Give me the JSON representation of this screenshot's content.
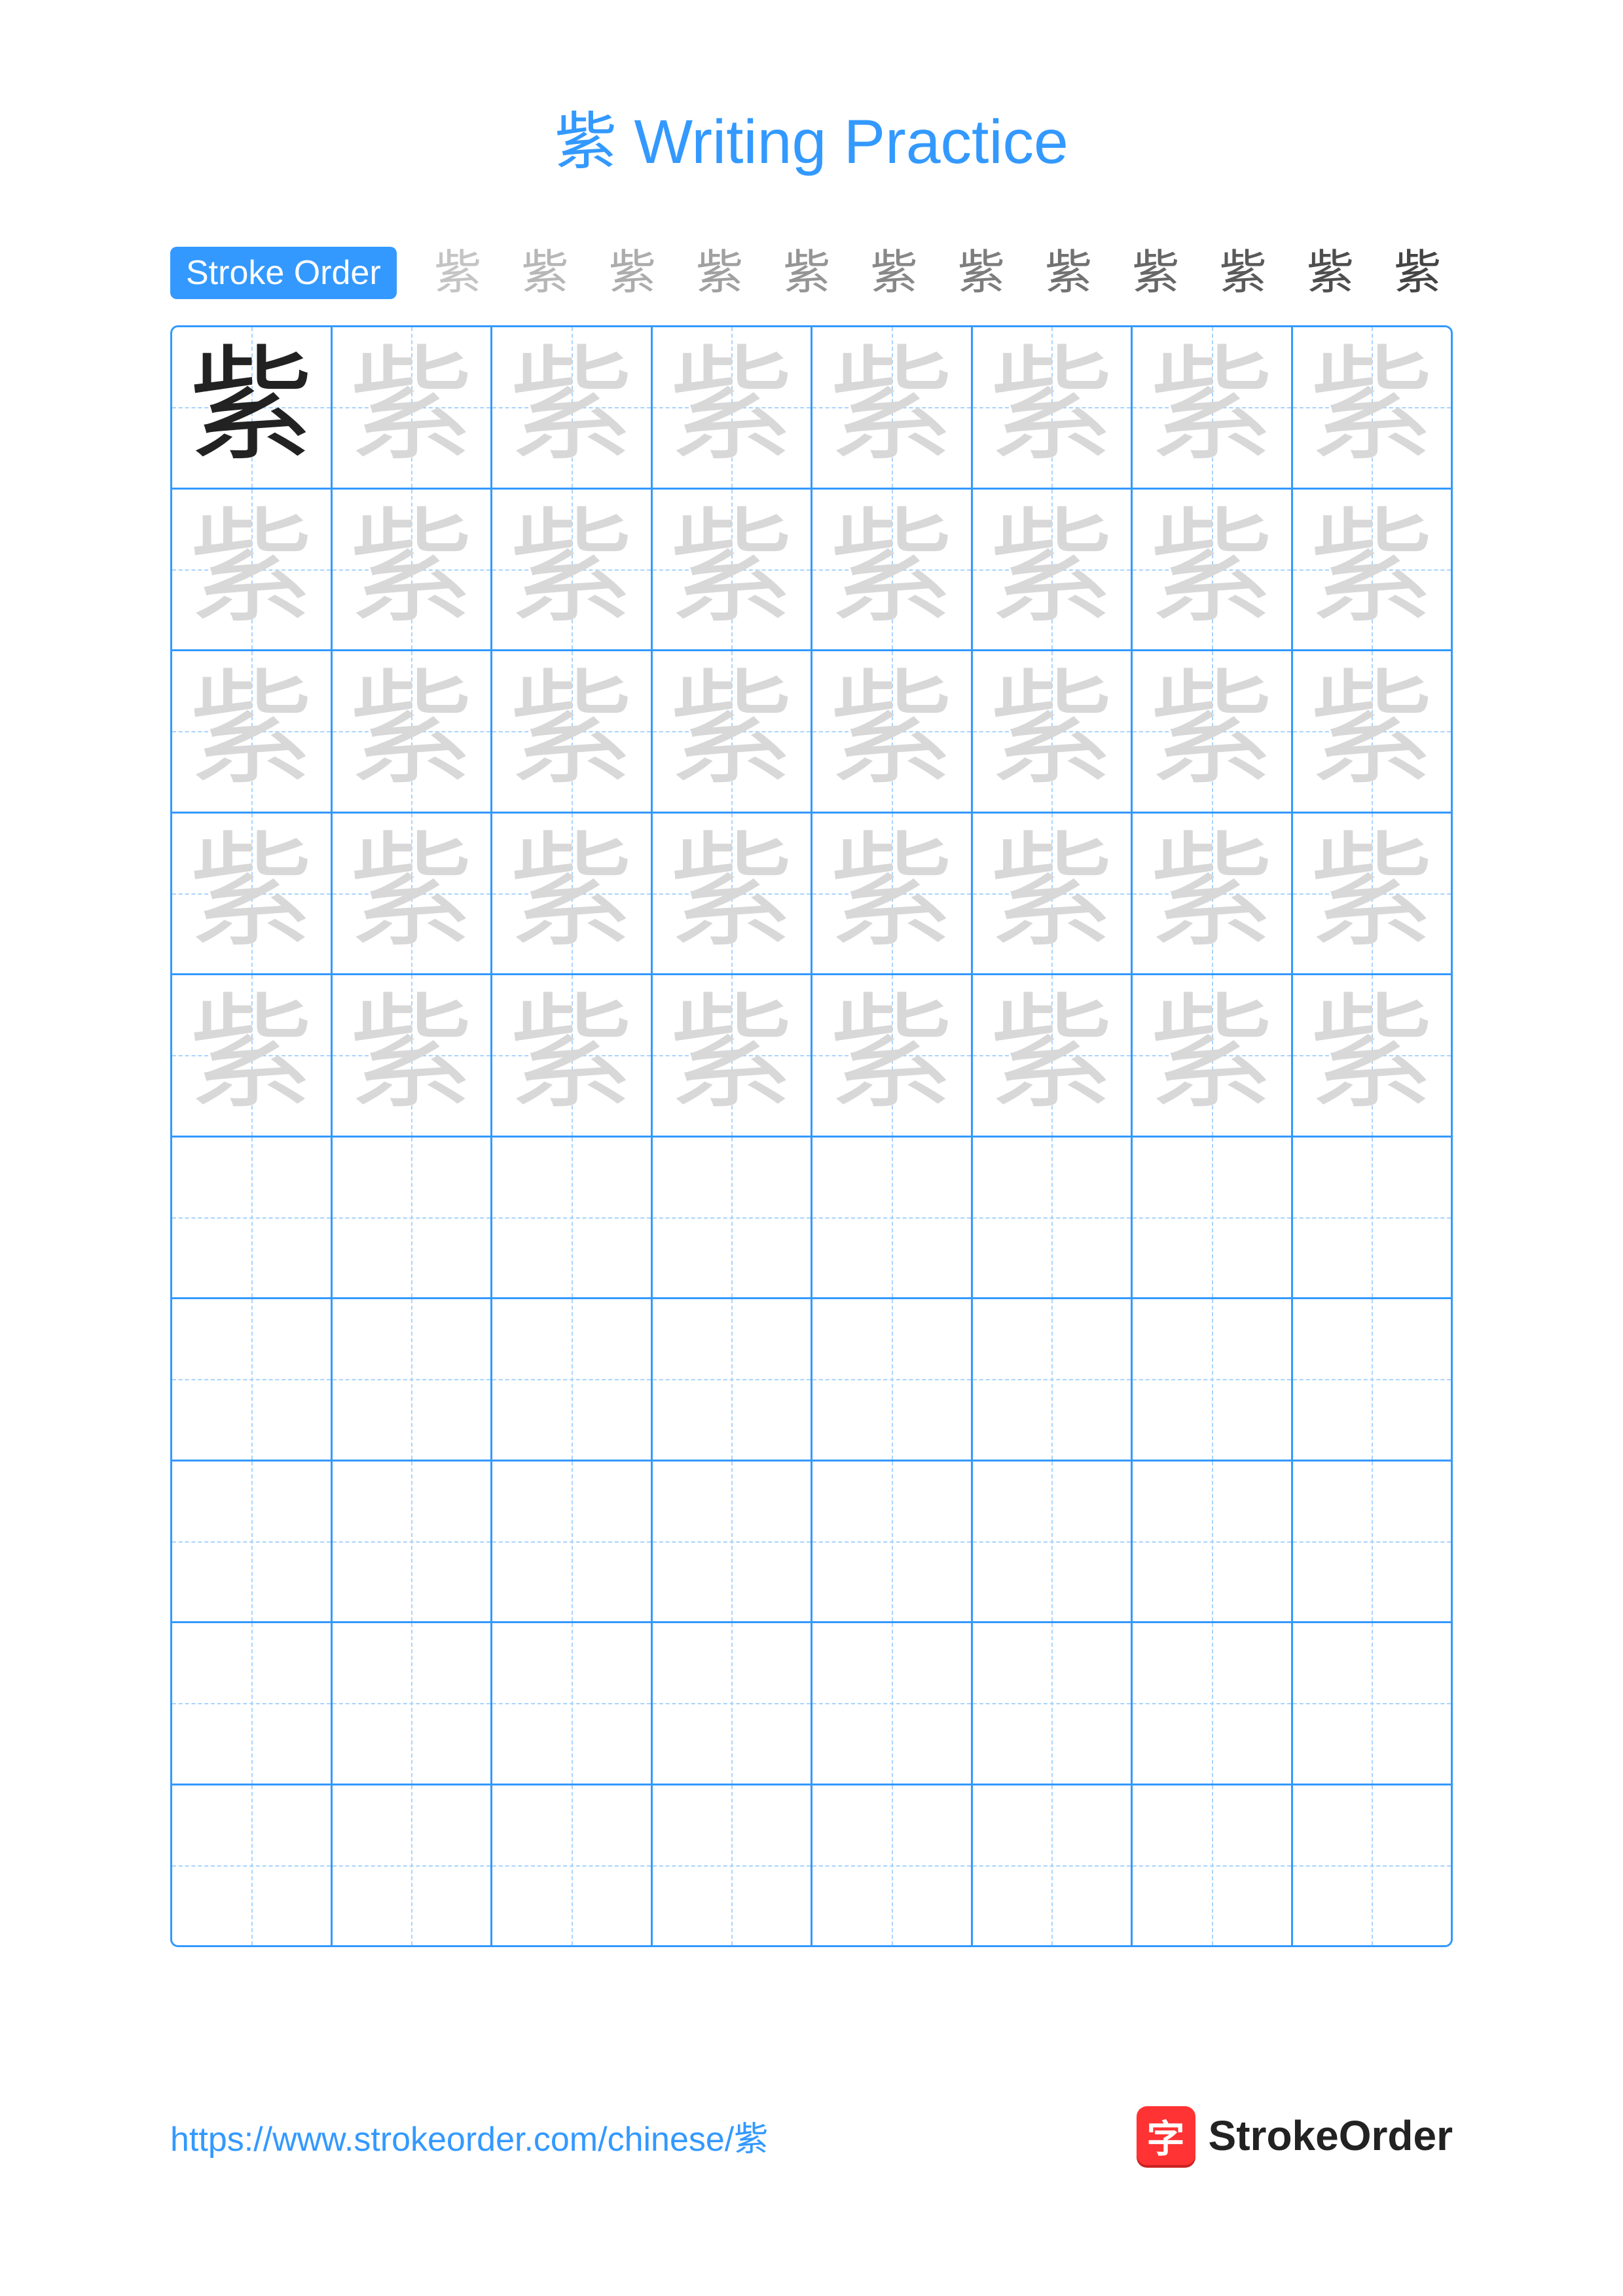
{
  "title": "紫 Writing Practice",
  "stroke_label": "Stroke Order",
  "character": "紫",
  "stroke_count": 12,
  "grid": {
    "rows": 10,
    "cols": 8,
    "trace_rows": 5,
    "main_cell": [
      0,
      0
    ]
  },
  "colors": {
    "primary": "#3399ff",
    "guide": "#a8d4ff",
    "trace": "#d8d8d8",
    "main_char": "#222222",
    "accent": "#ff3333",
    "background": "#ffffff"
  },
  "footer": {
    "url": "https://www.strokeorder.com/chinese/紫",
    "brand_icon_char": "字",
    "brand_text": "StrokeOrder"
  }
}
